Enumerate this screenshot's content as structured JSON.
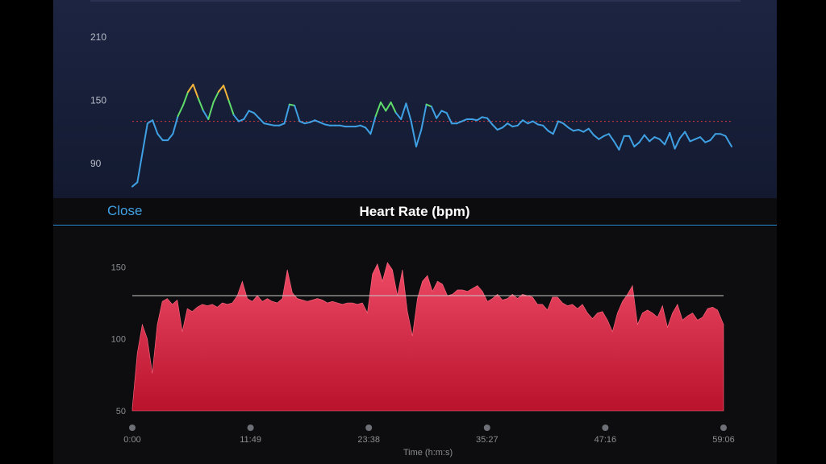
{
  "header": {
    "close_label": "Close",
    "title": "Heart Rate (bpm)"
  },
  "colors": {
    "line_default": "#3fa1e4",
    "line_mid": "#5fdc6a",
    "line_high": "#f3b53a",
    "area_fill_top": "#ee4a66",
    "area_fill_bottom": "#b8122c",
    "accent": "#3fa1e4",
    "reference_line_top": "#d23a3a",
    "reference_line_bottom": "#c9c9c9"
  },
  "chart_data": [
    {
      "type": "line",
      "title": "",
      "xlabel": "",
      "ylabel": "",
      "x_range": [
        0,
        3546
      ],
      "ylim": [
        60,
        230
      ],
      "yticks": [
        210,
        150,
        90
      ],
      "reference_line": 130,
      "zones": [
        {
          "name": "default",
          "max": 140,
          "color": "#3fa1e4"
        },
        {
          "name": "mid",
          "min": 140,
          "max": 155,
          "color": "#5fdc6a"
        },
        {
          "name": "high",
          "min": 155,
          "color": "#f3b53a"
        }
      ],
      "series": [
        {
          "x": [
            0,
            30,
            60,
            90,
            120,
            150,
            180,
            210,
            240,
            270,
            300,
            330,
            360,
            390,
            420,
            450,
            480,
            510,
            540,
            570,
            600,
            630,
            660,
            690,
            720,
            750,
            780,
            810,
            840,
            870,
            900,
            930,
            960,
            990,
            1020,
            1050,
            1080,
            1110,
            1140,
            1170,
            1200,
            1230,
            1260,
            1290,
            1320,
            1350,
            1380,
            1410,
            1440,
            1470,
            1500,
            1530,
            1560,
            1590,
            1620,
            1650,
            1680,
            1710,
            1740,
            1770,
            1800,
            1830,
            1860,
            1890,
            1920,
            1950,
            1980,
            2010,
            2040,
            2070,
            2100,
            2130,
            2160,
            2190,
            2220,
            2250,
            2280,
            2310,
            2340,
            2370,
            2400,
            2430,
            2460,
            2490,
            2520,
            2550,
            2580,
            2610,
            2640,
            2670,
            2700,
            2730,
            2760,
            2790,
            2820,
            2850,
            2880,
            2910,
            2940,
            2970,
            3000,
            3030,
            3060,
            3090,
            3120,
            3150,
            3180,
            3210,
            3240,
            3270,
            3300,
            3330,
            3360,
            3390,
            3420,
            3450,
            3480,
            3510,
            3546
          ],
          "y": [
            68,
            72,
            100,
            128,
            131,
            118,
            112,
            112,
            118,
            135,
            145,
            158,
            165,
            152,
            140,
            132,
            148,
            158,
            164,
            150,
            136,
            130,
            132,
            140,
            138,
            133,
            128,
            127,
            126,
            126,
            128,
            146,
            145,
            130,
            128,
            129,
            131,
            129,
            127,
            126,
            126,
            126,
            125,
            125,
            125,
            126,
            124,
            118,
            135,
            148,
            140,
            148,
            138,
            132,
            147,
            130,
            106,
            122,
            146,
            144,
            133,
            140,
            138,
            128,
            128,
            130,
            132,
            132,
            131,
            134,
            133,
            127,
            122,
            124,
            128,
            125,
            126,
            131,
            128,
            130,
            127,
            126,
            121,
            118,
            130,
            128,
            124,
            121,
            122,
            120,
            123,
            117,
            113,
            116,
            118,
            111,
            103,
            116,
            116,
            106,
            110,
            117,
            111,
            115,
            113,
            108,
            119,
            104,
            114,
            120,
            111,
            113,
            115,
            110,
            112,
            118,
            118,
            116,
            106
          ]
        }
      ]
    },
    {
      "type": "area",
      "title": "",
      "xlabel": "Time (h:m:s)",
      "ylabel": "",
      "x_tick_labels": [
        "0:00",
        "11:49",
        "23:38",
        "35:27",
        "47:16",
        "59:06"
      ],
      "x_range": [
        0,
        3546
      ],
      "ylim": [
        50,
        158
      ],
      "yticks": [
        150,
        100,
        50
      ],
      "reference_line": 130,
      "series": [
        {
          "x": [
            0,
            30,
            60,
            90,
            120,
            150,
            180,
            210,
            240,
            270,
            300,
            330,
            360,
            390,
            420,
            450,
            480,
            510,
            540,
            570,
            600,
            630,
            660,
            690,
            720,
            750,
            780,
            810,
            840,
            870,
            900,
            930,
            960,
            990,
            1020,
            1050,
            1080,
            1110,
            1140,
            1170,
            1200,
            1230,
            1260,
            1290,
            1320,
            1350,
            1380,
            1410,
            1440,
            1470,
            1500,
            1530,
            1560,
            1590,
            1620,
            1650,
            1680,
            1710,
            1740,
            1770,
            1800,
            1830,
            1860,
            1890,
            1920,
            1950,
            1980,
            2010,
            2040,
            2070,
            2100,
            2130,
            2160,
            2190,
            2220,
            2250,
            2280,
            2310,
            2340,
            2370,
            2400,
            2430,
            2460,
            2490,
            2520,
            2550,
            2580,
            2610,
            2640,
            2670,
            2700,
            2730,
            2760,
            2790,
            2820,
            2850,
            2880,
            2910,
            2940,
            2970,
            3000,
            3030,
            3060,
            3090,
            3120,
            3150,
            3180,
            3210,
            3240,
            3270,
            3300,
            3330,
            3360,
            3390,
            3420,
            3450,
            3480,
            3510,
            3546
          ],
          "y": [
            52,
            90,
            110,
            100,
            76,
            110,
            126,
            128,
            124,
            127,
            105,
            121,
            119,
            122,
            124,
            123,
            124,
            122,
            125,
            124,
            125,
            130,
            140,
            128,
            126,
            130,
            126,
            128,
            126,
            125,
            128,
            148,
            132,
            128,
            127,
            126,
            127,
            128,
            127,
            125,
            126,
            125,
            124,
            125,
            125,
            124,
            125,
            118,
            145,
            152,
            140,
            153,
            148,
            130,
            148,
            119,
            102,
            128,
            140,
            144,
            133,
            140,
            138,
            130,
            131,
            134,
            134,
            133,
            135,
            137,
            133,
            126,
            128,
            131,
            127,
            128,
            131,
            128,
            131,
            130,
            129,
            124,
            124,
            120,
            129,
            129,
            125,
            123,
            124,
            121,
            124,
            118,
            114,
            118,
            119,
            113,
            105,
            118,
            126,
            131,
            137,
            110,
            118,
            120,
            118,
            115,
            123,
            108,
            118,
            124,
            113,
            116,
            118,
            113,
            115,
            121,
            122,
            120,
            110
          ]
        }
      ]
    }
  ]
}
